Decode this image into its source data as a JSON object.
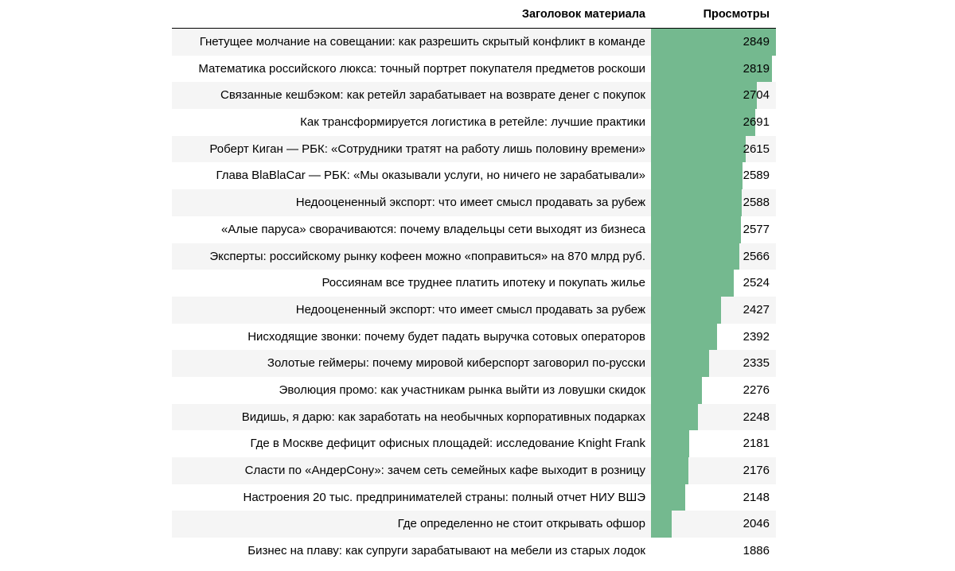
{
  "header": {
    "title_col": "Заголовок материала",
    "views_col": "Просмотры"
  },
  "colors": {
    "bar": "#74b98f",
    "stripe": "#f5f5f5"
  },
  "chart_data": {
    "type": "table",
    "columns": [
      "Заголовок материала",
      "Просмотры"
    ],
    "rows": [
      {
        "title": "Гнетущее молчание на совещании: как разрешить скрытый конфликт в команде",
        "views": 2849
      },
      {
        "title": "Математика российского люкса: точный портрет покупателя предметов роскоши",
        "views": 2819
      },
      {
        "title": "Связанные кешбэком: как ретейл зарабатывает на возврате денег с покупок",
        "views": 2704
      },
      {
        "title": "Как трансформируется логистика в ретейле: лучшие практики",
        "views": 2691
      },
      {
        "title": "Роберт Киган — РБК: «Сотрудники тратят на работу лишь половину времени»",
        "views": 2615
      },
      {
        "title": "Глава BlaBlaCar — РБК: «Мы оказывали услуги, но ничего не зарабатывали»",
        "views": 2589
      },
      {
        "title": "Недооцененный экспорт: что имеет смысл продавать за рубеж",
        "views": 2588
      },
      {
        "title": "«Алые паруса» сворачиваются: почему владельцы сети выходят из бизнеса",
        "views": 2577
      },
      {
        "title": "Эксперты: российскому рынку кофеен можно «поправиться» на 870 млрд руб.",
        "views": 2566
      },
      {
        "title": "Россиянам все труднее платить ипотеку и покупать жилье",
        "views": 2524
      },
      {
        "title": "Недооцененный экспорт: что имеет смысл продавать за рубеж",
        "views": 2427
      },
      {
        "title": "Нисходящие звонки: почему будет падать выручка сотовых операторов",
        "views": 2392
      },
      {
        "title": "Золотые геймеры: почему мировой киберспорт заговорил по-русски",
        "views": 2335
      },
      {
        "title": "Эволюция промо: как участникам рынка выйти из ловушки скидок",
        "views": 2276
      },
      {
        "title": "Видишь, я дарю: как заработать на необычных корпоративных подарках",
        "views": 2248
      },
      {
        "title": "Где в Москве дефицит офисных площадей: исследование Knight Frank",
        "views": 2181
      },
      {
        "title": "Сласти по «АндерСону»: зачем сеть семейных кафе выходит в розницу",
        "views": 2176
      },
      {
        "title": "Настроения 20 тыс. предпринимателей страны: полный отчет НИУ ВШЭ",
        "views": 2148
      },
      {
        "title": "Где определенно не стоит открывать офшор",
        "views": 2046
      },
      {
        "title": "Бизнес на плаву: как супруги зарабатывают на мебели из старых лодок",
        "views": 1886
      }
    ],
    "bar_scale": {
      "min": 1886,
      "max": 2849
    }
  }
}
